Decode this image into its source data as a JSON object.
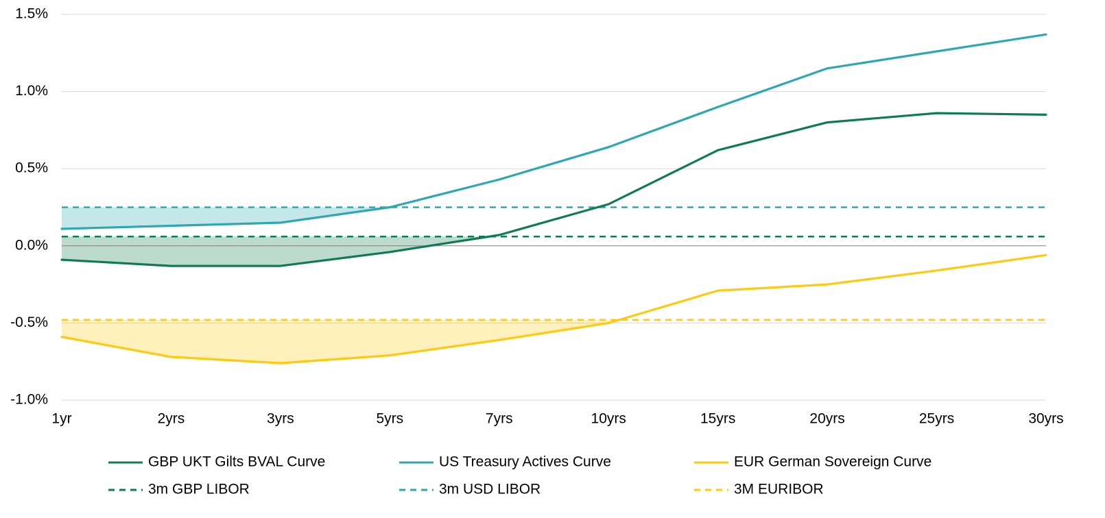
{
  "chart_data": {
    "type": "line",
    "categories": [
      "1yr",
      "2yrs",
      "3yrs",
      "5yrs",
      "7yrs",
      "10yrs",
      "15yrs",
      "20yrs",
      "25yrs",
      "30yrs"
    ],
    "ylim": [
      -1.0,
      1.5
    ],
    "yticks": [
      -1.0,
      -0.5,
      0.0,
      0.5,
      1.0,
      1.5
    ],
    "ytick_labels": [
      "-1.0%",
      "-0.5%",
      "0.0%",
      "0.5%",
      "1.0%",
      "1.5%"
    ],
    "grid": true,
    "legend_position": "bottom",
    "series": [
      {
        "name": "GBP UKT Gilts BVAL Curve",
        "style": "solid",
        "color": "#0E7C4F",
        "values": [
          -0.09,
          -0.13,
          -0.13,
          -0.04,
          0.07,
          0.27,
          0.62,
          0.8,
          0.86,
          0.85
        ]
      },
      {
        "name": "US Treasury Actives Curve",
        "style": "solid",
        "color": "#2BA8B0",
        "values": [
          0.11,
          0.13,
          0.15,
          0.25,
          0.43,
          0.64,
          0.9,
          1.15,
          1.26,
          1.37
        ]
      },
      {
        "name": "EUR German Sovereign Curve",
        "style": "solid",
        "color": "#FFC90E",
        "values": [
          -0.59,
          -0.72,
          -0.76,
          -0.71,
          -0.61,
          -0.5,
          -0.29,
          -0.25,
          -0.16,
          -0.06
        ]
      },
      {
        "name": "3m GBP LIBOR",
        "style": "dashed",
        "color": "#0E7C4F",
        "value": 0.06
      },
      {
        "name": "3m USD LIBOR",
        "style": "dashed",
        "color": "#2BA8B0",
        "value": 0.25
      },
      {
        "name": "3M EURIBOR",
        "style": "dashed",
        "color": "#FFC90E",
        "value": -0.48
      }
    ],
    "shaded_regions": [
      {
        "curve": "US Treasury Actives Curve",
        "rate": "3m USD LIBOR",
        "color": "#2BA8B0"
      },
      {
        "curve": "GBP UKT Gilts BVAL Curve",
        "rate": "3m GBP LIBOR",
        "color": "#0E7C4F"
      },
      {
        "curve": "EUR German Sovereign Curve",
        "rate": "3M EURIBOR",
        "color": "#FFC90E"
      }
    ]
  }
}
